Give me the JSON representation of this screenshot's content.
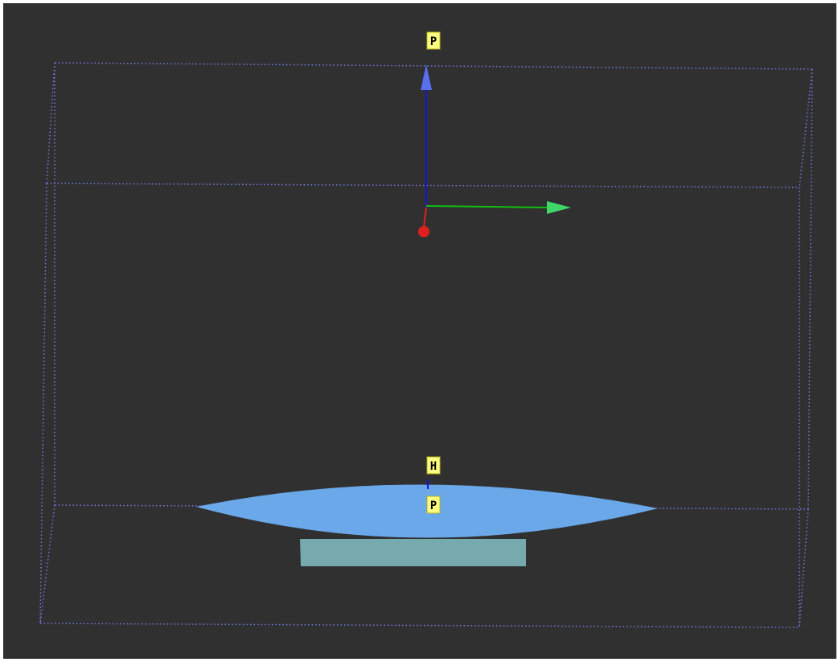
{
  "viewport": {
    "background": "#303030",
    "frame_color": "#ffffff"
  },
  "bounding_box": {
    "color": "#7878e6",
    "style": "dotted"
  },
  "axes": {
    "x": {
      "color": "#e02020",
      "icon": "x-axis-arrow-icon"
    },
    "y": {
      "color": "#10c010",
      "icon": "y-axis-arrow-icon"
    },
    "z": {
      "color": "#1515d8",
      "icon": "z-axis-arrow-icon"
    }
  },
  "markers": {
    "top": {
      "label": "P",
      "fill": "#ffff80"
    },
    "upper": {
      "label": "H",
      "fill": "#ffff80"
    },
    "lower": {
      "label": "P",
      "fill": "#ffff80"
    }
  },
  "surfaces": {
    "lens": {
      "color": "#6aa8ea"
    },
    "base": {
      "color": "#76aaae"
    }
  }
}
